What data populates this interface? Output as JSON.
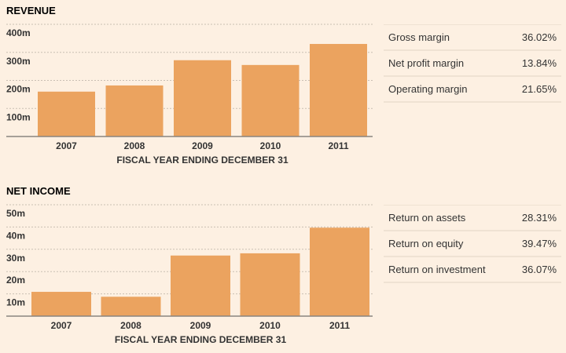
{
  "chart_data": [
    {
      "type": "bar",
      "title": "REVENUE",
      "categories": [
        "2007",
        "2008",
        "2009",
        "2010",
        "2011"
      ],
      "values": [
        160,
        182,
        272,
        255,
        330
      ],
      "unit": "m",
      "xlabel": "FISCAL YEAR ENDING DECEMBER 31",
      "ylabel": "",
      "ylim": [
        0,
        400
      ],
      "yticks": [
        100,
        200,
        300,
        400
      ],
      "ytick_labels": [
        "100m",
        "200m",
        "300m",
        "400m"
      ],
      "grid": true,
      "color": "#eba35f"
    },
    {
      "type": "bar",
      "title": "NET INCOME",
      "categories": [
        "2007",
        "2008",
        "2009",
        "2010",
        "2011"
      ],
      "values": [
        10.9,
        8.7,
        27.2,
        28.2,
        39.7
      ],
      "unit": "m",
      "xlabel": "FISCAL YEAR ENDING DECEMBER 31",
      "ylabel": "",
      "ylim": [
        0,
        50
      ],
      "yticks": [
        10,
        20,
        30,
        40,
        50
      ],
      "ytick_labels": [
        "10m",
        "20m",
        "30m",
        "40m",
        "50m"
      ],
      "grid": true,
      "color": "#eba35f"
    }
  ],
  "revenue_stats": [
    {
      "label": "Gross margin",
      "value": "36.02%"
    },
    {
      "label": "Net profit margin",
      "value": "13.84%"
    },
    {
      "label": "Operating margin",
      "value": "21.65%"
    }
  ],
  "income_stats": [
    {
      "label": "Return on assets",
      "value": "28.31%"
    },
    {
      "label": "Return on equity",
      "value": "39.47%"
    },
    {
      "label": "Return on investment",
      "value": "36.07%"
    }
  ]
}
